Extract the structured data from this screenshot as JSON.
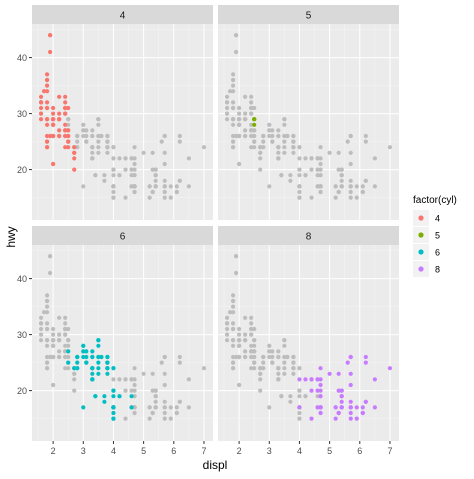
{
  "chart_data": {
    "type": "scatter",
    "facet_variable": "cyl",
    "facet_layout": "2x2 grid",
    "xlabel": "displ",
    "ylabel": "hwy",
    "xlim": [
      1.3,
      7.3
    ],
    "ylim": [
      11,
      46
    ],
    "x_ticks": [
      2,
      3,
      4,
      5,
      6,
      7
    ],
    "y_ticks": [
      20,
      30,
      40
    ],
    "grid": true,
    "legend": {
      "title": "factor(cyl)",
      "placement": "right",
      "entries": [
        {
          "label": "4",
          "color": "#F8766D"
        },
        {
          "label": "5",
          "color": "#7CAE00"
        },
        {
          "label": "6",
          "color": "#00BFC4"
        },
        {
          "label": "8",
          "color": "#C77CFF"
        }
      ]
    },
    "background_point_color": "#BDBDBD",
    "panels": [
      {
        "label": "4",
        "color": "#F8766D",
        "points": [
          [
            1.8,
            29
          ],
          [
            1.8,
            29
          ],
          [
            2.0,
            31
          ],
          [
            2.0,
            30
          ],
          [
            1.8,
            26
          ],
          [
            1.8,
            25
          ],
          [
            2.0,
            28
          ],
          [
            2.2,
            27
          ],
          [
            2.2,
            29
          ],
          [
            2.4,
            27
          ],
          [
            2.4,
            30
          ],
          [
            2.4,
            33
          ],
          [
            2.0,
            26
          ],
          [
            2.0,
            29
          ],
          [
            2.7,
            20
          ],
          [
            2.7,
            22
          ],
          [
            2.7,
            24
          ],
          [
            1.6,
            33
          ],
          [
            1.6,
            32
          ],
          [
            1.6,
            32
          ],
          [
            1.6,
            29
          ],
          [
            1.6,
            32
          ],
          [
            1.8,
            34
          ],
          [
            1.8,
            36
          ],
          [
            1.8,
            36
          ],
          [
            2.0,
            29
          ],
          [
            2.0,
            26
          ],
          [
            2.4,
            27
          ],
          [
            2.4,
            30
          ],
          [
            2.5,
            27
          ],
          [
            2.5,
            25
          ],
          [
            2.2,
            26
          ],
          [
            2.2,
            29
          ],
          [
            2.4,
            26
          ],
          [
            2.4,
            31
          ],
          [
            1.8,
            35
          ],
          [
            1.8,
            37
          ],
          [
            1.9,
            44
          ],
          [
            1.9,
            44
          ],
          [
            1.9,
            41
          ],
          [
            1.8,
            29
          ],
          [
            1.8,
            25
          ],
          [
            2.0,
            28
          ],
          [
            2.5,
            25
          ],
          [
            2.5,
            26
          ],
          [
            2.2,
            26
          ],
          [
            2.4,
            28
          ],
          [
            2.4,
            26
          ],
          [
            2.4,
            27
          ],
          [
            2.0,
            21
          ],
          [
            2.0,
            21
          ],
          [
            1.8,
            24
          ],
          [
            1.8,
            24
          ],
          [
            2.0,
            28
          ],
          [
            2.0,
            26
          ],
          [
            2.4,
            31
          ],
          [
            2.7,
            23
          ],
          [
            2.7,
            23
          ],
          [
            1.9,
            26
          ],
          [
            2.0,
            29
          ],
          [
            2.0,
            29
          ],
          [
            1.8,
            28
          ],
          [
            2.5,
            26
          ],
          [
            2.5,
            24
          ],
          [
            2.2,
            30
          ],
          [
            2.2,
            33
          ],
          [
            2.4,
            31
          ],
          [
            2.4,
            32
          ],
          [
            1.6,
            30
          ],
          [
            1.7,
            34
          ],
          [
            2.0,
            29
          ],
          [
            2.2,
            29
          ],
          [
            2.4,
            24
          ],
          [
            2.5,
            27
          ],
          [
            1.8,
            31
          ],
          [
            2.0,
            28
          ],
          [
            2.5,
            31
          ],
          [
            1.8,
            32
          ],
          [
            2.2,
            29
          ],
          [
            1.6,
            31
          ],
          [
            1.8,
            31
          ]
        ]
      },
      {
        "label": "5",
        "color": "#7CAE00",
        "points": [
          [
            2.5,
            29
          ],
          [
            2.5,
            29
          ],
          [
            2.5,
            28
          ],
          [
            2.5,
            29
          ]
        ]
      },
      {
        "label": "6",
        "color": "#00BFC4",
        "points": [
          [
            2.8,
            26
          ],
          [
            2.8,
            26
          ],
          [
            3.1,
            27
          ],
          [
            3.1,
            25
          ],
          [
            2.8,
            25
          ],
          [
            3.1,
            25
          ],
          [
            3.8,
            26
          ],
          [
            3.8,
            25
          ],
          [
            3.8,
            24
          ],
          [
            3.8,
            23
          ],
          [
            3.8,
            25
          ],
          [
            3.8,
            25
          ],
          [
            3.8,
            26
          ],
          [
            3.8,
            24
          ],
          [
            4.2,
            19
          ],
          [
            4.2,
            19
          ],
          [
            4.0,
            20
          ],
          [
            4.0,
            19
          ],
          [
            4.0,
            17
          ],
          [
            4.0,
            17
          ],
          [
            4.0,
            17
          ],
          [
            4.0,
            17
          ],
          [
            4.6,
            17
          ],
          [
            4.6,
            19
          ],
          [
            3.0,
            17
          ],
          [
            3.7,
            19
          ],
          [
            3.7,
            18
          ],
          [
            3.3,
            24
          ],
          [
            3.3,
            24
          ],
          [
            3.3,
            22
          ],
          [
            3.3,
            22
          ],
          [
            3.8,
            24
          ],
          [
            3.8,
            24
          ],
          [
            4.0,
            24
          ],
          [
            3.3,
            24
          ],
          [
            3.3,
            22
          ],
          [
            3.3,
            22
          ],
          [
            3.8,
            24
          ],
          [
            3.8,
            26
          ],
          [
            4.0,
            24
          ],
          [
            3.1,
            26
          ],
          [
            3.5,
            24
          ],
          [
            3.5,
            25
          ],
          [
            3.5,
            26
          ],
          [
            3.5,
            23
          ],
          [
            3.3,
            26
          ],
          [
            3.5,
            29
          ],
          [
            3.0,
            26
          ],
          [
            3.6,
            26
          ],
          [
            3.6,
            26
          ],
          [
            3.0,
            27
          ],
          [
            3.0,
            27
          ],
          [
            3.3,
            26
          ],
          [
            3.3,
            27
          ],
          [
            3.5,
            26
          ],
          [
            3.5,
            28
          ],
          [
            2.7,
            24
          ],
          [
            2.7,
            24
          ],
          [
            2.8,
            26
          ],
          [
            2.8,
            24
          ],
          [
            3.4,
            19
          ],
          [
            3.4,
            19
          ],
          [
            4.0,
            17
          ],
          [
            4.0,
            15
          ],
          [
            4.0,
            17
          ],
          [
            4.0,
            15
          ],
          [
            4.0,
            16
          ],
          [
            4.0,
            17
          ],
          [
            4.0,
            20
          ],
          [
            4.0,
            17
          ],
          [
            2.5,
            27
          ],
          [
            2.5,
            25
          ],
          [
            3.5,
            29
          ],
          [
            3.5,
            29
          ],
          [
            3.0,
            28
          ],
          [
            3.0,
            28
          ],
          [
            3.3,
            23
          ],
          [
            3.3,
            24
          ],
          [
            2.8,
            24
          ]
        ]
      },
      {
        "label": "8",
        "color": "#C77CFF",
        "points": [
          [
            5.7,
            26
          ],
          [
            5.7,
            23
          ],
          [
            6.2,
            26
          ],
          [
            6.2,
            25
          ],
          [
            7.0,
            24
          ],
          [
            5.3,
            23
          ],
          [
            5.3,
            20
          ],
          [
            5.7,
            15
          ],
          [
            6.5,
            17
          ],
          [
            5.2,
            17
          ],
          [
            5.2,
            17
          ],
          [
            5.9,
            17
          ],
          [
            4.7,
            17
          ],
          [
            4.7,
            17
          ],
          [
            4.7,
            17
          ],
          [
            5.2,
            15
          ],
          [
            5.7,
            16
          ],
          [
            5.9,
            15
          ],
          [
            4.7,
            16
          ],
          [
            4.7,
            16
          ],
          [
            5.7,
            17
          ],
          [
            6.1,
            17
          ],
          [
            5.3,
            16
          ],
          [
            5.3,
            16
          ],
          [
            5.4,
            17
          ],
          [
            4.6,
            17
          ],
          [
            5.4,
            18
          ],
          [
            4.7,
            17
          ],
          [
            5.4,
            17
          ],
          [
            4.7,
            19
          ],
          [
            4.7,
            19
          ],
          [
            4.7,
            17
          ],
          [
            4.7,
            17
          ],
          [
            5.7,
            17
          ],
          [
            6.1,
            16
          ],
          [
            5.3,
            16
          ],
          [
            5.7,
            17
          ],
          [
            4.6,
            20
          ],
          [
            5.4,
            17
          ],
          [
            4.6,
            22
          ],
          [
            5.4,
            19
          ],
          [
            5.4,
            17
          ],
          [
            4.2,
            22
          ],
          [
            4.4,
            22
          ],
          [
            4.4,
            20
          ],
          [
            4.4,
            15
          ],
          [
            4.4,
            22
          ],
          [
            4.7,
            24
          ],
          [
            5.6,
            25
          ],
          [
            4.7,
            21
          ],
          [
            5.0,
            23
          ],
          [
            5.4,
            20
          ],
          [
            6.2,
            18
          ],
          [
            6.5,
            22
          ],
          [
            4.6,
            22
          ],
          [
            5.4,
            20
          ],
          [
            5.7,
            21
          ],
          [
            4.0,
            17
          ],
          [
            4.0,
            22
          ],
          [
            4.7,
            17
          ],
          [
            4.7,
            17
          ],
          [
            4.7,
            17
          ],
          [
            5.7,
            18
          ],
          [
            6.1,
            16
          ],
          [
            6.1,
            16
          ],
          [
            5.4,
            19
          ],
          [
            4.7,
            20
          ],
          [
            4.7,
            22
          ],
          [
            5.7,
            26
          ],
          [
            6.2,
            18
          ],
          [
            5.4,
            19
          ]
        ]
      }
    ]
  }
}
